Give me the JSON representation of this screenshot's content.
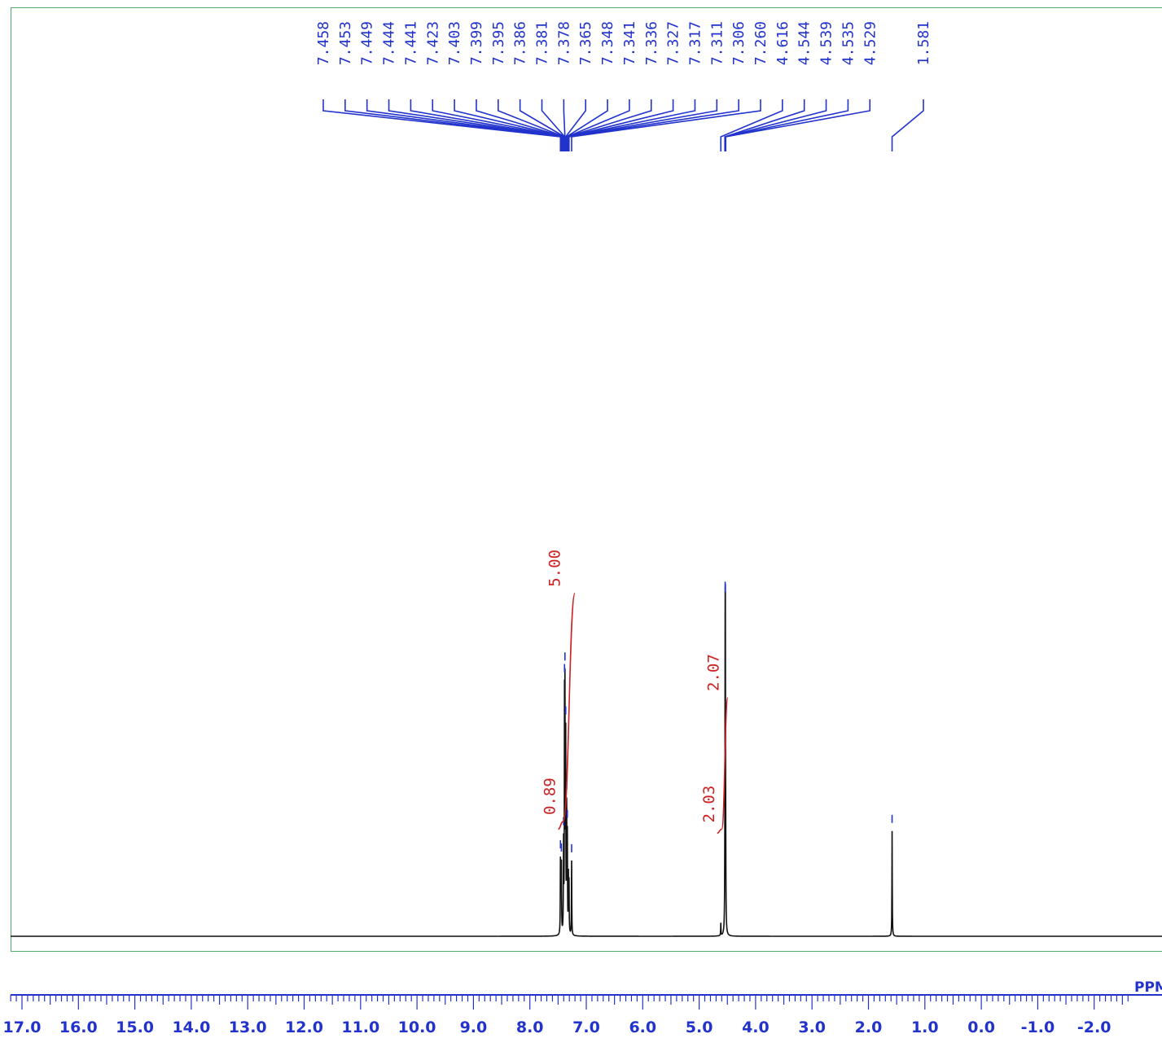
{
  "chart_data": {
    "type": "line",
    "title": "",
    "xlabel": "PPM",
    "ylabel": "",
    "xlim": [
      17.6,
      -2.6
    ],
    "x_direction": "decreasing",
    "ylim": [
      0,
      1.0
    ],
    "grid": false,
    "legend": "none",
    "tick_labels": [
      "17.0",
      "16.0",
      "15.0",
      "14.0",
      "13.0",
      "12.0",
      "11.0",
      "10.0",
      "9.0",
      "8.0",
      "7.0",
      "6.0",
      "5.0",
      "4.0",
      "3.0",
      "2.0",
      "1.0",
      "0.0",
      "-1.0",
      "-2.0"
    ],
    "ticks": [
      17.0,
      16.0,
      15.0,
      14.0,
      13.0,
      12.0,
      11.0,
      10.0,
      9.0,
      8.0,
      7.0,
      6.0,
      5.0,
      4.0,
      3.0,
      2.0,
      1.0,
      0.0,
      -1.0,
      -2.0
    ],
    "peak_labels": [
      "7.458",
      "7.453",
      "7.449",
      "7.444",
      "7.441",
      "7.423",
      "7.403",
      "7.399",
      "7.395",
      "7.386",
      "7.381",
      "7.378",
      "7.365",
      "7.348",
      "7.341",
      "7.336",
      "7.327",
      "7.317",
      "7.311",
      "7.306",
      "7.260",
      "4.616",
      "4.544",
      "4.539",
      "4.535",
      "4.529",
      "1.581"
    ],
    "peaks": [
      {
        "ppm": 7.458,
        "height": 0.11
      },
      {
        "ppm": 7.449,
        "height": 0.09
      },
      {
        "ppm": 7.441,
        "height": 0.1
      },
      {
        "ppm": 7.403,
        "height": 0.14
      },
      {
        "ppm": 7.386,
        "height": 0.34
      },
      {
        "ppm": 7.378,
        "height": 0.35
      },
      {
        "ppm": 7.365,
        "height": 0.3
      },
      {
        "ppm": 7.348,
        "height": 0.19
      },
      {
        "ppm": 7.336,
        "height": 0.15
      },
      {
        "ppm": 7.317,
        "height": 0.09
      },
      {
        "ppm": 7.306,
        "height": 0.08
      },
      {
        "ppm": 7.26,
        "height": 0.12
      },
      {
        "ppm": 4.616,
        "height": 0.02
      },
      {
        "ppm": 4.544,
        "height": 0.07
      },
      {
        "ppm": 4.539,
        "height": 0.36
      },
      {
        "ppm": 4.535,
        "height": 0.36
      },
      {
        "ppm": 4.529,
        "height": 0.07
      },
      {
        "ppm": 1.581,
        "height": 0.17
      }
    ],
    "integrals": [
      {
        "label": "0.89",
        "from": 7.5,
        "to": 7.41,
        "level_start": 0.03,
        "level_end": 0.04
      },
      {
        "label": "5.00",
        "from": 7.41,
        "to": 7.2,
        "level_start": 0.04,
        "level_end": 0.335
      },
      {
        "label": "2.07",
        "from": 4.6,
        "to": 4.49,
        "level_start": 0.03,
        "level_end": 0.2
      },
      {
        "label": "2.03",
        "from": 4.68,
        "to": 4.6,
        "level_start": 0.025,
        "level_end": 0.03
      }
    ]
  }
}
